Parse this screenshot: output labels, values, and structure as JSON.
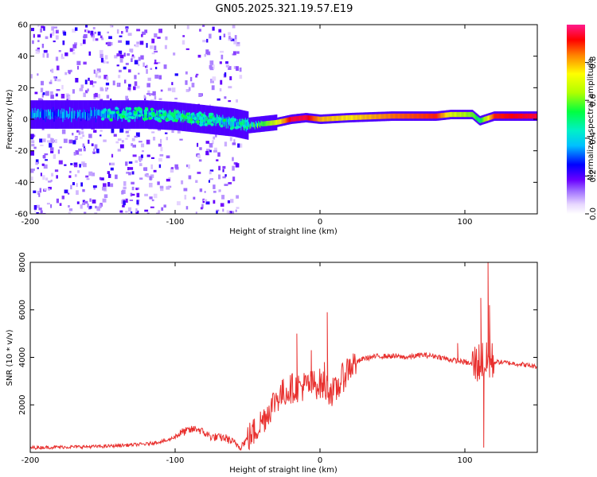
{
  "chart_data": [
    {
      "type": "heatmap",
      "title": "GN05.2025.321.19.57.E19",
      "xlabel": "Height of straight line (km)",
      "ylabel": "Frequency (Hz)",
      "xlim": [
        -200,
        150
      ],
      "ylim": [
        -60,
        60
      ],
      "xticks": [
        -200,
        -100,
        0,
        100
      ],
      "yticks": [
        -60,
        -40,
        -20,
        0,
        20,
        40,
        60
      ],
      "ridge": {
        "x": [
          -150,
          -120,
          -100,
          -80,
          -60,
          -50,
          -40,
          -30,
          -20,
          -10,
          0,
          20,
          50,
          80,
          90,
          105,
          110,
          120,
          150
        ],
        "freq": [
          3,
          3,
          2,
          0,
          -2,
          -4,
          -3,
          -2,
          0,
          1,
          0,
          1,
          2,
          2,
          3,
          3,
          -1,
          2,
          2
        ],
        "amplitude": [
          0.35,
          0.4,
          0.45,
          0.45,
          0.4,
          0.5,
          0.55,
          0.7,
          0.95,
          0.95,
          0.8,
          0.75,
          0.85,
          0.9,
          0.7,
          0.6,
          0.5,
          0.9,
          0.95
        ]
      },
      "colorbar": {
        "label": "Normalized spectral amplitude",
        "range": [
          0,
          1
        ],
        "ticks": [
          "0.0",
          "0.2",
          "0.4",
          "0.6",
          "0.8"
        ]
      }
    },
    {
      "type": "line",
      "title": "",
      "xlabel": "Height of straight line (km)",
      "ylabel": "SNR (10 * v/v)",
      "xlim": [
        -200,
        150
      ],
      "ylim": [
        0,
        8000
      ],
      "xticks": [
        -200,
        -100,
        0,
        100
      ],
      "yticks": [
        2000,
        4000,
        6000,
        8000
      ],
      "series": [
        {
          "name": "SNR",
          "color": "#e8312f",
          "x": [
            -200,
            -150,
            -120,
            -105,
            -95,
            -85,
            -75,
            -65,
            -55,
            -45,
            -38,
            -30,
            -20,
            -10,
            0,
            10,
            20,
            30,
            40,
            50,
            60,
            70,
            80,
            90,
            100,
            105,
            108,
            110,
            112,
            114,
            116,
            118,
            125,
            140,
            150
          ],
          "y": [
            200,
            250,
            350,
            500,
            850,
            1000,
            650,
            600,
            250,
            900,
            1500,
            2300,
            2700,
            2800,
            2900,
            2500,
            3600,
            3950,
            4050,
            4050,
            4000,
            4100,
            4050,
            3900,
            3800,
            3700,
            3750,
            3800,
            3900,
            3600,
            3900,
            3800,
            3800,
            3700,
            3600
          ]
        }
      ],
      "spikes": [
        {
          "x": -16,
          "y": 5000
        },
        {
          "x": -6,
          "y": 4300
        },
        {
          "x": 3,
          "y": 3800
        },
        {
          "x": 5,
          "y": 5900
        },
        {
          "x": 95,
          "y": 4600
        },
        {
          "x": 111,
          "y": 6500
        },
        {
          "x": 113,
          "y": 200
        },
        {
          "x": 116,
          "y": 8000
        },
        {
          "x": 117,
          "y": 6200
        }
      ]
    }
  ]
}
